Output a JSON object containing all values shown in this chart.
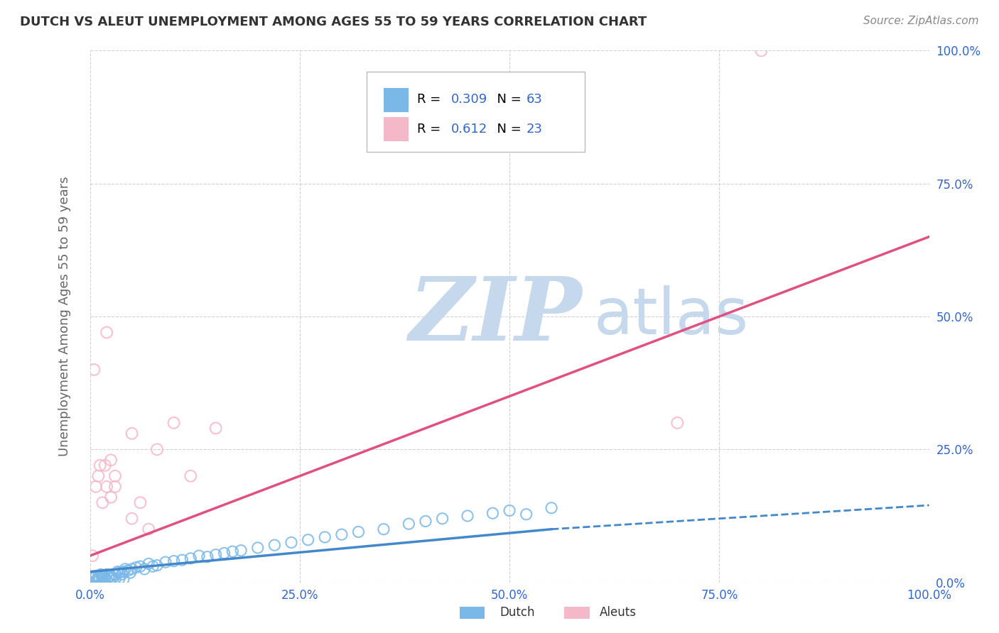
{
  "title": "DUTCH VS ALEUT UNEMPLOYMENT AMONG AGES 55 TO 59 YEARS CORRELATION CHART",
  "source": "Source: ZipAtlas.com",
  "ylabel": "Unemployment Among Ages 55 to 59 years",
  "xlim": [
    0,
    1
  ],
  "ylim": [
    0,
    1
  ],
  "xticks": [
    0.0,
    0.25,
    0.5,
    0.75,
    1.0
  ],
  "yticks": [
    0.0,
    0.25,
    0.5,
    0.75,
    1.0
  ],
  "xticklabels": [
    "0.0%",
    "25.0%",
    "50.0%",
    "75.0%",
    "100.0%"
  ],
  "yticklabels": [
    "0.0%",
    "25.0%",
    "50.0%",
    "75.0%",
    "100.0%"
  ],
  "dutch_color": "#7ab8e8",
  "dutch_edge_color": "#5a9fd4",
  "aleut_color": "#f5b8c8",
  "aleut_edge_color": "#e8809a",
  "dutch_line_color": "#4488cc",
  "aleut_line_color": "#e05080",
  "R_dutch": 0.309,
  "N_dutch": 63,
  "R_aleut": 0.612,
  "N_aleut": 23,
  "watermark_zip": "ZIP",
  "watermark_atlas": "atlas",
  "watermark_color_zip": "#c5d8ec",
  "watermark_color_atlas": "#c5d8ec",
  "background_color": "#ffffff",
  "legend_color": "#3366cc",
  "dutch_x": [
    0.003,
    0.005,
    0.007,
    0.008,
    0.01,
    0.012,
    0.013,
    0.015,
    0.016,
    0.018,
    0.02,
    0.022,
    0.025,
    0.027,
    0.03,
    0.033,
    0.035,
    0.038,
    0.04,
    0.042,
    0.045,
    0.048,
    0.05,
    0.055,
    0.06,
    0.065,
    0.07,
    0.075,
    0.08,
    0.09,
    0.1,
    0.11,
    0.12,
    0.13,
    0.14,
    0.15,
    0.16,
    0.17,
    0.18,
    0.2,
    0.22,
    0.24,
    0.26,
    0.28,
    0.3,
    0.32,
    0.35,
    0.38,
    0.4,
    0.42,
    0.45,
    0.48,
    0.5,
    0.52,
    0.55,
    0.008,
    0.01,
    0.015,
    0.02,
    0.025,
    0.03,
    0.035,
    0.04
  ],
  "dutch_y": [
    0.01,
    0.008,
    0.012,
    0.005,
    0.01,
    0.008,
    0.015,
    0.01,
    0.012,
    0.008,
    0.015,
    0.01,
    0.012,
    0.008,
    0.015,
    0.02,
    0.018,
    0.015,
    0.02,
    0.025,
    0.022,
    0.018,
    0.025,
    0.028,
    0.03,
    0.025,
    0.035,
    0.03,
    0.032,
    0.038,
    0.04,
    0.042,
    0.045,
    0.05,
    0.048,
    0.052,
    0.055,
    0.058,
    0.06,
    0.065,
    0.07,
    0.075,
    0.08,
    0.085,
    0.09,
    0.095,
    0.1,
    0.11,
    0.115,
    0.12,
    0.125,
    0.13,
    0.135,
    0.128,
    0.14,
    0.005,
    0.003,
    0.006,
    0.004,
    0.008,
    0.005,
    0.007,
    0.006
  ],
  "aleut_x": [
    0.003,
    0.005,
    0.007,
    0.01,
    0.012,
    0.015,
    0.018,
    0.02,
    0.025,
    0.03,
    0.05,
    0.08,
    0.1,
    0.12,
    0.15,
    0.02,
    0.025,
    0.03,
    0.7,
    0.8,
    0.05,
    0.06,
    0.07
  ],
  "aleut_y": [
    0.05,
    0.4,
    0.18,
    0.2,
    0.22,
    0.15,
    0.22,
    0.18,
    0.23,
    0.2,
    0.28,
    0.25,
    0.3,
    0.2,
    0.29,
    0.47,
    0.16,
    0.18,
    0.3,
    1.0,
    0.12,
    0.15,
    0.1
  ],
  "dutch_line_x0": 0.0,
  "dutch_line_y0": 0.02,
  "dutch_line_x1": 0.55,
  "dutch_line_y1": 0.1,
  "dutch_line_xdash": 0.55,
  "dutch_line_ydash1": 0.1,
  "dutch_line_xend": 1.0,
  "dutch_line_yend": 0.145,
  "aleut_line_x0": 0.0,
  "aleut_line_y0": 0.05,
  "aleut_line_x1": 1.0,
  "aleut_line_y1": 0.65
}
